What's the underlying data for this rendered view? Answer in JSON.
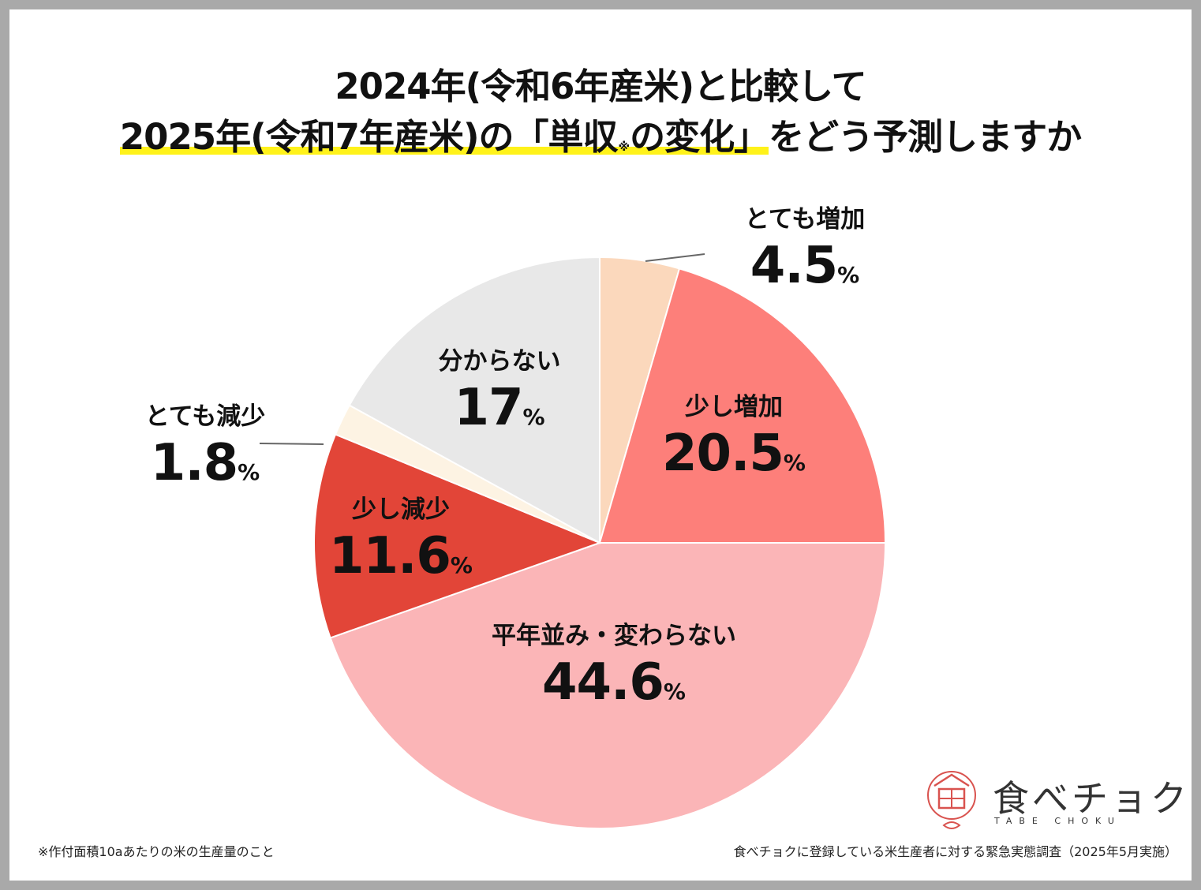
{
  "title": {
    "line1": "2024年(令和6年産米)と比較して",
    "line2_highlight_a": "2025年(令和7年産米)の「単収",
    "line2_note": "※",
    "line2_highlight_b": "の変化」",
    "line2_rest": "をどう予測しますか"
  },
  "footnote": "※作付面積10aあたりの米の生産量のこと",
  "source": "食べチョクに登録している米生産者に対する緊急実態調査（2025年5月実施）",
  "logo": {
    "icon": "rice-bowl-logo-icon",
    "text": "食べチョク",
    "sub": "TABE CHOKU"
  },
  "colors": {
    "highlight": "#fff21a",
    "border": "#a9a9a9",
    "leader": "#666666",
    "slice_edge": "#ffffff",
    "logo_red": "#d9534f"
  },
  "chart_data": {
    "type": "pie",
    "title": "2025年(令和7年産米)の「単収の変化」をどう予測しますか",
    "start_angle_deg": 0,
    "direction": "clockwise",
    "unit": "%",
    "slices": [
      {
        "label": "とても増加",
        "value": 4.5,
        "display": "4.5",
        "color": "#fbd8bc"
      },
      {
        "label": "少し増加",
        "value": 20.5,
        "display": "20.5",
        "color": "#fd7f7a"
      },
      {
        "label": "平年並み・変わらない",
        "value": 44.6,
        "display": "44.6",
        "color": "#fbb5b7"
      },
      {
        "label": "少し減少",
        "value": 11.6,
        "display": "11.6",
        "color": "#e24538"
      },
      {
        "label": "とても減少",
        "value": 1.8,
        "display": "1.8",
        "color": "#fdf3e3"
      },
      {
        "label": "分からない",
        "value": 17.0,
        "display": "17",
        "color": "#e8e8e8"
      }
    ]
  }
}
